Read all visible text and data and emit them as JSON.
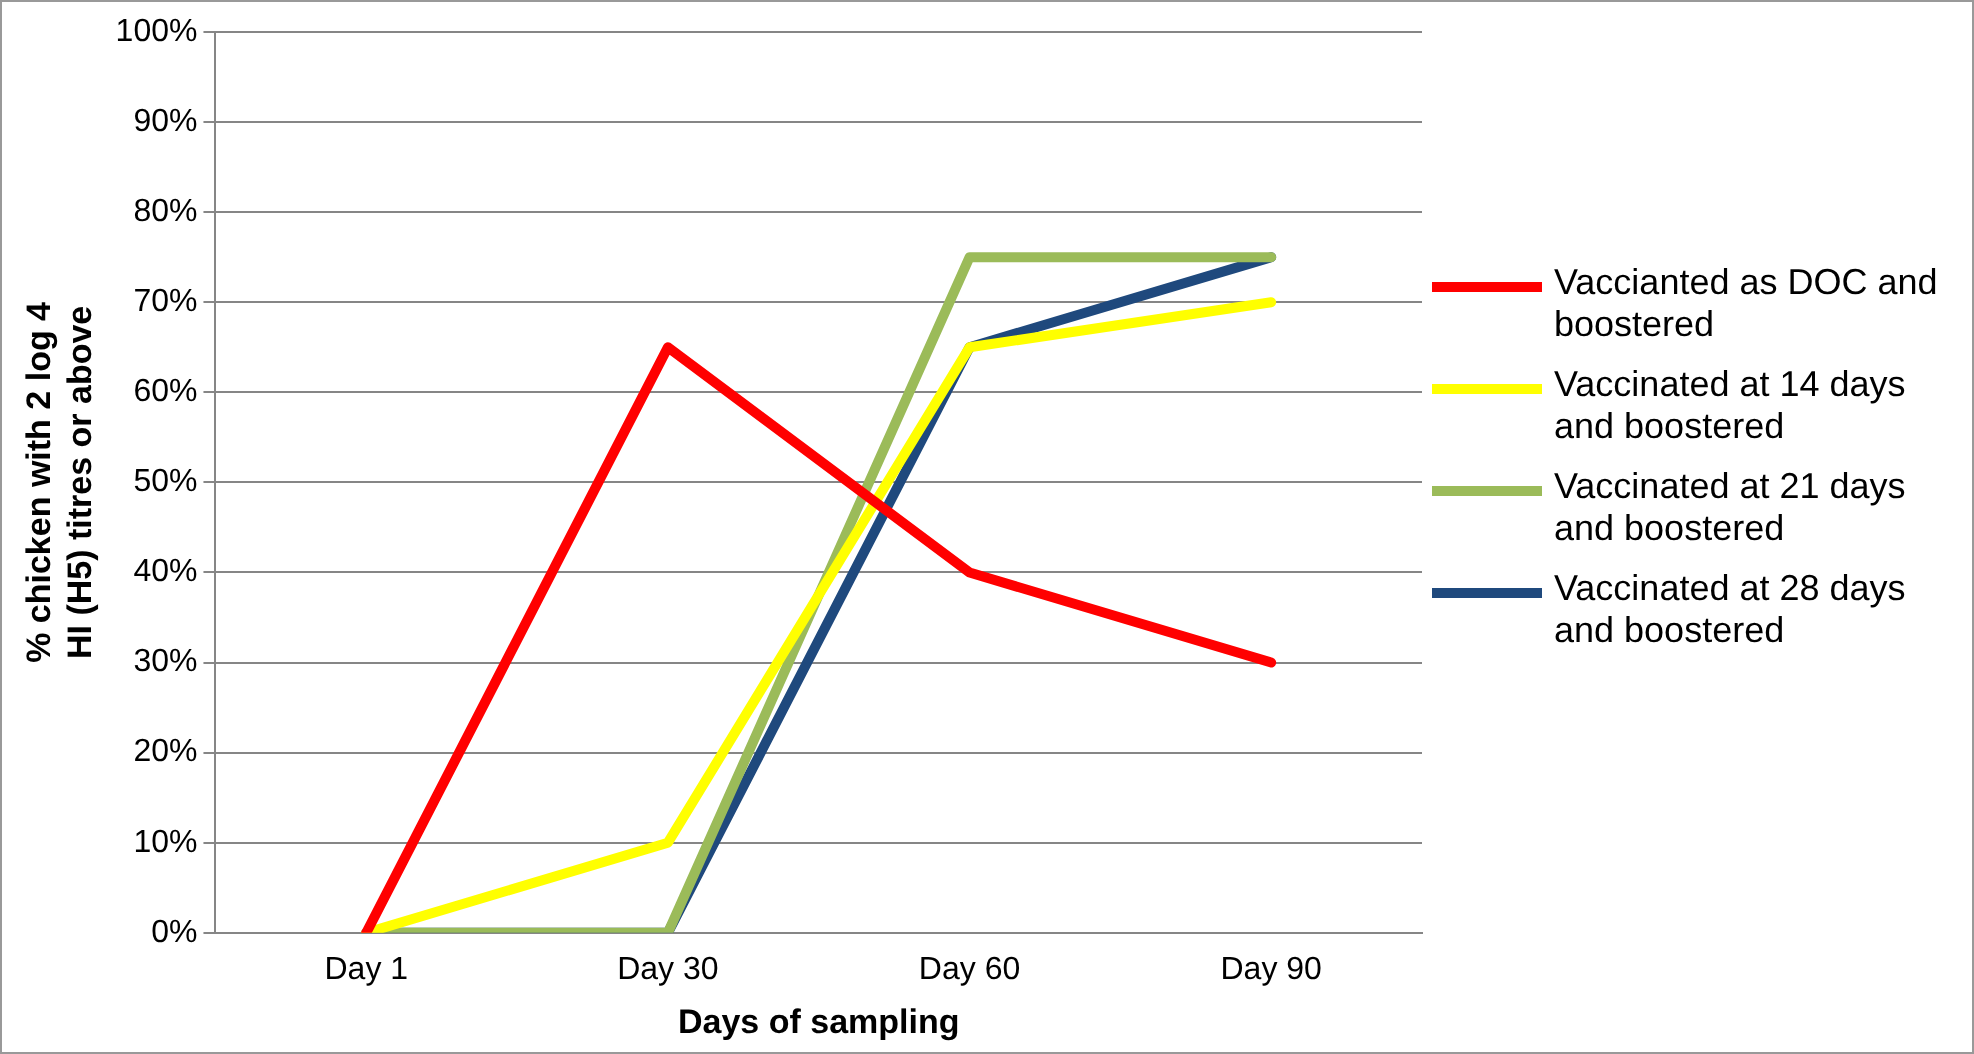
{
  "chart_data": {
    "type": "line",
    "xlabel": "Days of sampling",
    "ylabel": "% chicken with 2 log 4 HI (H5) titres or above",
    "categories": [
      "Day 1",
      "Day 30",
      "Day 60",
      "Day 90"
    ],
    "series": [
      {
        "name": "Vaccianted as DOC and boostered",
        "color": "#ff0000",
        "values": [
          0,
          65,
          40,
          30
        ]
      },
      {
        "name": "Vaccinated at 14 days and boostered",
        "color": "#ffff00",
        "values": [
          0,
          10,
          65,
          70
        ]
      },
      {
        "name": "Vaccinated at 21 days and boostered",
        "color": "#9bbb59",
        "values": [
          0,
          0,
          75,
          75
        ]
      },
      {
        "name": "Vaccinated at 28 days and boostered",
        "color": "#1f497d",
        "values": [
          0,
          0,
          65,
          75
        ]
      }
    ],
    "ylim": [
      0,
      100
    ],
    "yticks": [
      {
        "value": 0,
        "label": "0%"
      },
      {
        "value": 10,
        "label": "10%"
      },
      {
        "value": 20,
        "label": "20%"
      },
      {
        "value": 30,
        "label": "30%"
      },
      {
        "value": 40,
        "label": "40%"
      },
      {
        "value": 50,
        "label": "50%"
      },
      {
        "value": 60,
        "label": "60%"
      },
      {
        "value": 70,
        "label": "70%"
      },
      {
        "value": 80,
        "label": "80%"
      },
      {
        "value": 90,
        "label": "90%"
      },
      {
        "value": 100,
        "label": "100%"
      }
    ],
    "grid": "y",
    "legend": "right",
    "marker": "none",
    "line_style": "solid"
  }
}
